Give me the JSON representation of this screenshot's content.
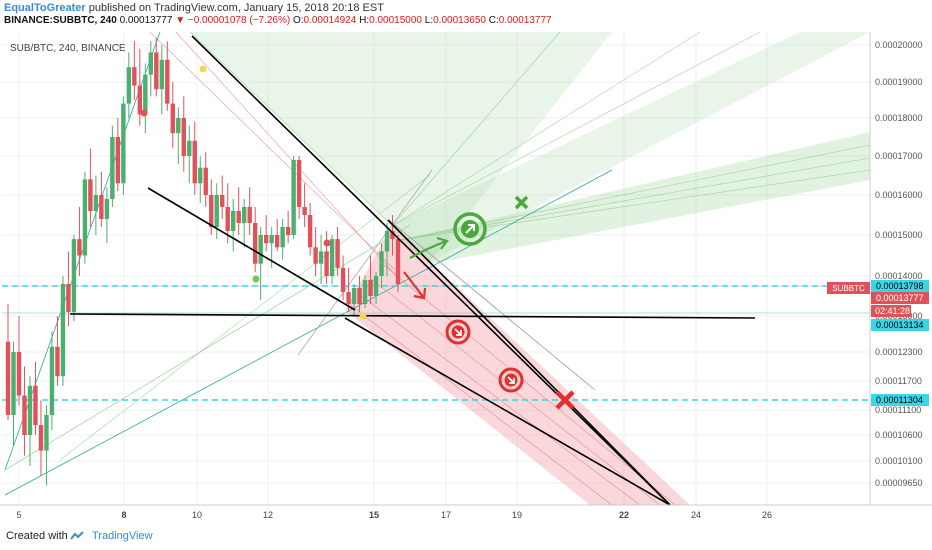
{
  "header": {
    "author": "EqualToGreater",
    "published": "published on TradingView.com, January 15, 2018 20:18 EST",
    "symbol": "BINANCE:SUBBTC, 240",
    "last": "0.00013777",
    "change": "▼ −0.00001078 (−7.26%)",
    "o_label": "O:",
    "o_val": "0.00014924",
    "h_label": "H:",
    "h_val": "0.00015000",
    "l_label": "L:",
    "l_val": "0.00013650",
    "c_label": "C:",
    "c_val": "0.00013777"
  },
  "chart_title": "SUB/BTC, 240, BINANCE",
  "footer": {
    "created_with": "Created with",
    "brand": "TradingView"
  },
  "colors": {
    "up": "#4caf6e",
    "down": "#e0525b",
    "cyan": "#3ad6e6",
    "green_zone": "#9fd39b",
    "red_zone": "#f28b94",
    "label_red": "#e0302f"
  },
  "chart_data": {
    "type": "candlestick",
    "x_ticks": [
      "5",
      "8",
      "10",
      "12",
      "15",
      "17",
      "19",
      "22",
      "24",
      "26"
    ],
    "y_ticks": [
      "0.00020000",
      "0.00019000",
      "0.00018000",
      "0.00017000",
      "0.00016000",
      "0.00015000",
      "0.00014000",
      "0.00013000",
      "0.00012300",
      "0.00011700",
      "0.00011100",
      "0.00010600",
      "0.00010100",
      "0.00009650"
    ],
    "price_labels": {
      "symbol": "SUBBTC",
      "upper_line": "0.00013798",
      "last": "0.00013777",
      "countdown": "02:41:28",
      "mid_line": "0.00013134",
      "lower_line": "0.00011304"
    },
    "candles": [
      {
        "o": 0.000125,
        "h": 0.000133,
        "l": 0.000109,
        "c": 0.00011
      },
      {
        "o": 0.00011,
        "h": 0.000125,
        "l": 0.000104,
        "c": 0.000123
      },
      {
        "o": 0.000123,
        "h": 0.00013,
        "l": 0.000112,
        "c": 0.000114
      },
      {
        "o": 0.000114,
        "h": 0.00012,
        "l": 0.000102,
        "c": 0.000106
      },
      {
        "o": 0.000106,
        "h": 0.000118,
        "l": 0.0001,
        "c": 0.000116
      },
      {
        "o": 0.000116,
        "h": 0.000121,
        "l": 0.000106,
        "c": 0.000108
      },
      {
        "o": 0.000108,
        "h": 0.000113,
        "l": 9.8e-05,
        "c": 0.000103
      },
      {
        "o": 0.000103,
        "h": 0.000112,
        "l": 9.6e-05,
        "c": 0.00011
      },
      {
        "o": 0.00011,
        "h": 0.000127,
        "l": 0.000107,
        "c": 0.000124
      },
      {
        "o": 0.000124,
        "h": 0.00013,
        "l": 0.000116,
        "c": 0.000118
      },
      {
        "o": 0.000118,
        "h": 0.00014,
        "l": 0.000116,
        "c": 0.000138
      },
      {
        "o": 0.000138,
        "h": 0.000146,
        "l": 0.000128,
        "c": 0.000131
      },
      {
        "o": 0.000131,
        "h": 0.00015,
        "l": 0.000129,
        "c": 0.000149
      },
      {
        "o": 0.000149,
        "h": 0.000157,
        "l": 0.00014,
        "c": 0.000145
      },
      {
        "o": 0.000145,
        "h": 0.000166,
        "l": 0.000143,
        "c": 0.000164
      },
      {
        "o": 0.000164,
        "h": 0.000172,
        "l": 0.000152,
        "c": 0.000156
      },
      {
        "o": 0.000156,
        "h": 0.000165,
        "l": 0.00015,
        "c": 0.00016
      },
      {
        "o": 0.00016,
        "h": 0.000166,
        "l": 0.000152,
        "c": 0.000154
      },
      {
        "o": 0.000154,
        "h": 0.000162,
        "l": 0.000148,
        "c": 0.000159
      },
      {
        "o": 0.000159,
        "h": 0.000178,
        "l": 0.000157,
        "c": 0.000175
      },
      {
        "o": 0.000175,
        "h": 0.00018,
        "l": 0.000161,
        "c": 0.000163
      },
      {
        "o": 0.000163,
        "h": 0.000186,
        "l": 0.00016,
        "c": 0.000184
      },
      {
        "o": 0.000184,
        "h": 0.000198,
        "l": 0.00018,
        "c": 0.000194
      },
      {
        "o": 0.000194,
        "h": 0.000201,
        "l": 0.000185,
        "c": 0.000189
      },
      {
        "o": 0.000189,
        "h": 0.000199,
        "l": 0.000178,
        "c": 0.000181
      },
      {
        "o": 0.000181,
        "h": 0.000195,
        "l": 0.000176,
        "c": 0.000192
      },
      {
        "o": 0.000192,
        "h": 0.000201,
        "l": 0.000186,
        "c": 0.000198
      },
      {
        "o": 0.000198,
        "h": 0.000202,
        "l": 0.000186,
        "c": 0.000188
      },
      {
        "o": 0.000188,
        "h": 0.0002,
        "l": 0.000181,
        "c": 0.000196
      },
      {
        "o": 0.000196,
        "h": 0.000201,
        "l": 0.000182,
        "c": 0.000184
      },
      {
        "o": 0.000184,
        "h": 0.00019,
        "l": 0.000172,
        "c": 0.000176
      },
      {
        "o": 0.000176,
        "h": 0.000183,
        "l": 0.000168,
        "c": 0.00018
      },
      {
        "o": 0.00018,
        "h": 0.000186,
        "l": 0.000166,
        "c": 0.00017
      },
      {
        "o": 0.00017,
        "h": 0.000178,
        "l": 0.000163,
        "c": 0.000174
      },
      {
        "o": 0.000174,
        "h": 0.000179,
        "l": 0.00016,
        "c": 0.000163
      },
      {
        "o": 0.000163,
        "h": 0.00017,
        "l": 0.000158,
        "c": 0.000167
      },
      {
        "o": 0.000167,
        "h": 0.000171,
        "l": 0.000157,
        "c": 0.00016
      },
      {
        "o": 0.00016,
        "h": 0.000164,
        "l": 0.00015,
        "c": 0.000152
      },
      {
        "o": 0.000152,
        "h": 0.000163,
        "l": 0.000149,
        "c": 0.00016
      },
      {
        "o": 0.00016,
        "h": 0.000165,
        "l": 0.000154,
        "c": 0.000157
      },
      {
        "o": 0.000157,
        "h": 0.000163,
        "l": 0.000148,
        "c": 0.000151
      },
      {
        "o": 0.000151,
        "h": 0.000159,
        "l": 0.000146,
        "c": 0.000156
      },
      {
        "o": 0.000156,
        "h": 0.000162,
        "l": 0.00015,
        "c": 0.000153
      },
      {
        "o": 0.000153,
        "h": 0.000159,
        "l": 0.000147,
        "c": 0.000157
      },
      {
        "o": 0.000157,
        "h": 0.000162,
        "l": 0.00015,
        "c": 0.000153
      },
      {
        "o": 0.000153,
        "h": 0.000157,
        "l": 0.000141,
        "c": 0.000143
      },
      {
        "o": 0.000143,
        "h": 0.000152,
        "l": 0.000134,
        "c": 0.00015
      },
      {
        "o": 0.00015,
        "h": 0.000155,
        "l": 0.000146,
        "c": 0.000148
      },
      {
        "o": 0.000148,
        "h": 0.000152,
        "l": 0.000142,
        "c": 0.00015
      },
      {
        "o": 0.00015,
        "h": 0.000154,
        "l": 0.000146,
        "c": 0.000147
      },
      {
        "o": 0.000147,
        "h": 0.000154,
        "l": 0.000144,
        "c": 0.000152
      },
      {
        "o": 0.000152,
        "h": 0.000156,
        "l": 0.000148,
        "c": 0.00015
      },
      {
        "o": 0.00015,
        "h": 0.00017,
        "l": 0.000149,
        "c": 0.000169
      },
      {
        "o": 0.000169,
        "h": 0.00017,
        "l": 0.000154,
        "c": 0.000157
      },
      {
        "o": 0.000157,
        "h": 0.000163,
        "l": 0.000152,
        "c": 0.000155
      },
      {
        "o": 0.000155,
        "h": 0.000158,
        "l": 0.000145,
        "c": 0.000147
      },
      {
        "o": 0.000147,
        "h": 0.000152,
        "l": 0.00014,
        "c": 0.000143
      },
      {
        "o": 0.000143,
        "h": 0.00015,
        "l": 0.000138,
        "c": 0.000146
      },
      {
        "o": 0.000146,
        "h": 0.000151,
        "l": 0.000138,
        "c": 0.00014
      },
      {
        "o": 0.00014,
        "h": 0.00015,
        "l": 0.000138,
        "c": 0.000149
      },
      {
        "o": 0.000149,
        "h": 0.000152,
        "l": 0.00014,
        "c": 0.000142
      },
      {
        "o": 0.000142,
        "h": 0.000145,
        "l": 0.000134,
        "c": 0.000136
      },
      {
        "o": 0.000136,
        "h": 0.000142,
        "l": 0.000131,
        "c": 0.000133
      },
      {
        "o": 0.000133,
        "h": 0.000138,
        "l": 0.00013,
        "c": 0.000137
      },
      {
        "o": 0.000137,
        "h": 0.00014,
        "l": 0.000131,
        "c": 0.000133
      },
      {
        "o": 0.000133,
        "h": 0.00014,
        "l": 0.000132,
        "c": 0.000139
      },
      {
        "o": 0.000139,
        "h": 0.000145,
        "l": 0.000133,
        "c": 0.000135
      },
      {
        "o": 0.000135,
        "h": 0.000141,
        "l": 0.000133,
        "c": 0.00014
      },
      {
        "o": 0.00014,
        "h": 0.000148,
        "l": 0.000137,
        "c": 0.000146
      },
      {
        "o": 0.000146,
        "h": 0.000153,
        "l": 0.00014,
        "c": 0.000151
      },
      {
        "o": 0.000151,
        "h": 0.000155,
        "l": 0.000145,
        "c": 0.000149
      },
      {
        "o": 0.000149,
        "h": 0.00015,
        "l": 0.000136,
        "c": 0.000138
      }
    ]
  }
}
